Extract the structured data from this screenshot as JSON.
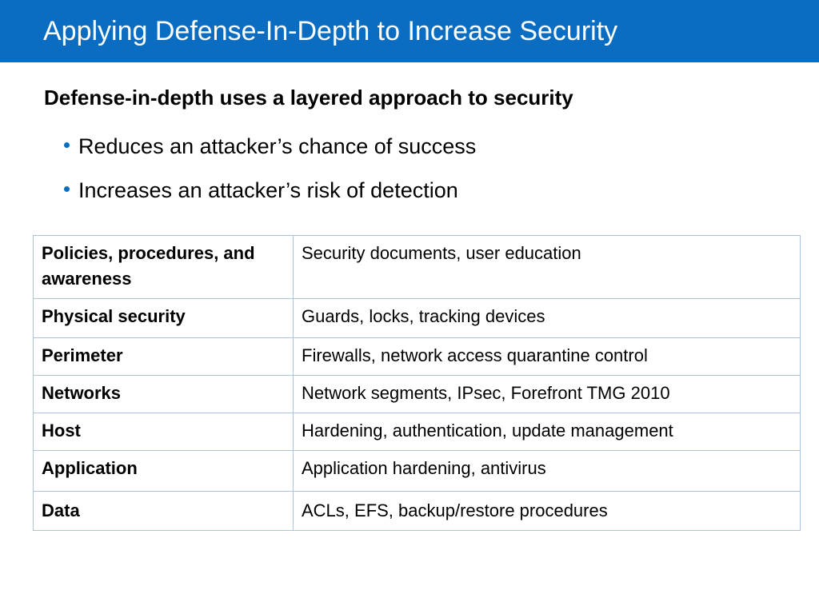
{
  "slide": {
    "title": "Applying Defense-In-Depth to Increase Security",
    "heading": "Defense-in-depth uses a layered approach to security",
    "bullets": [
      "Reduces an attacker’s chance of success",
      "Increases an attacker’s risk of detection"
    ],
    "accent_color": "#0a6dc2",
    "table": {
      "rows": [
        {
          "layer": "Policies, procedures, and awareness",
          "examples": "Security documents, user education"
        },
        {
          "layer": "Physical security",
          "examples": "Guards, locks, tracking devices"
        },
        {
          "layer": "Perimeter",
          "examples": "Firewalls, network access quarantine control"
        },
        {
          "layer": "Networks",
          "examples": "Network segments, IPsec, Forefront TMG 2010"
        },
        {
          "layer": "Host",
          "examples": "Hardening, authentication, update management"
        },
        {
          "layer": "Application",
          "examples": "Application hardening, antivirus"
        },
        {
          "layer": "Data",
          "examples": "ACLs, EFS, backup/restore procedures"
        }
      ]
    }
  }
}
